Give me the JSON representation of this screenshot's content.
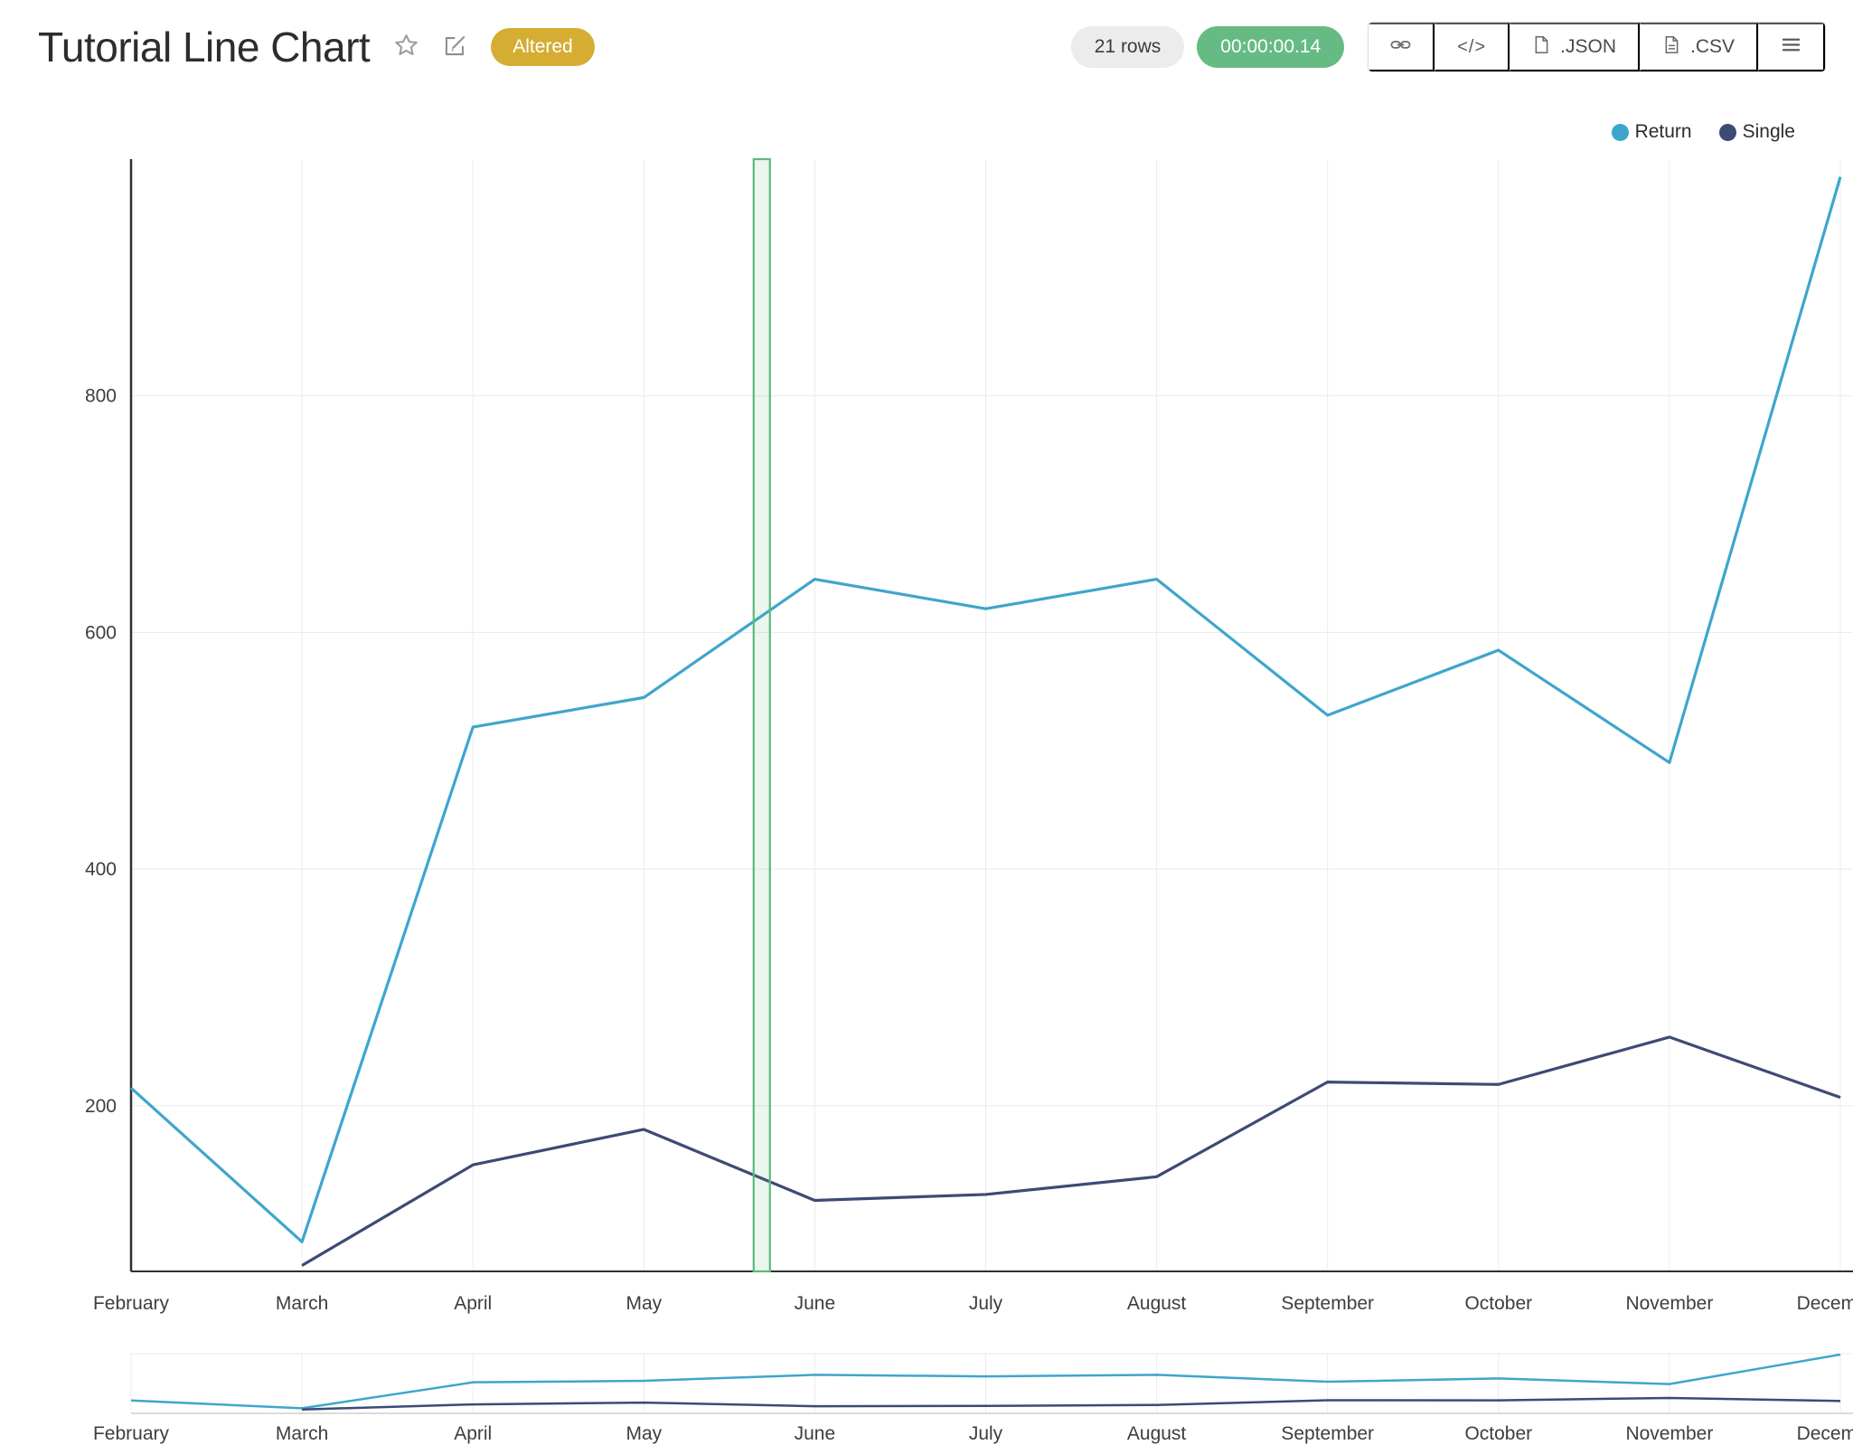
{
  "header": {
    "title": "Tutorial Line Chart",
    "altered_badge": "Altered",
    "rows_badge": "21 rows",
    "duration_badge": "00:00:00.14",
    "code_button_label": "</>",
    "json_button_label": ".JSON",
    "csv_button_label": ".CSV"
  },
  "colors": {
    "return_series": "#3ea6cb",
    "single_series": "#3e4a75",
    "selection_border": "#5bb97d",
    "selection_fill": "rgba(91,185,125,0.13)",
    "altered_badge_bg": "#d5ad33",
    "duration_badge_bg": "#66bb84",
    "rows_badge_bg": "#ececec"
  },
  "chart_data": {
    "type": "line",
    "title": "Tutorial Line Chart",
    "categories": [
      "February",
      "March",
      "April",
      "May",
      "June",
      "July",
      "August",
      "September",
      "October",
      "November",
      "December"
    ],
    "series": [
      {
        "name": "Return",
        "color": "#3ea6cb",
        "values": [
          215,
          85,
          520,
          545,
          645,
          620,
          645,
          530,
          585,
          490,
          985
        ]
      },
      {
        "name": "Single",
        "color": "#3e4a75",
        "values": [
          null,
          65,
          150,
          180,
          120,
          125,
          140,
          220,
          218,
          258,
          207
        ]
      }
    ],
    "xlabel": "",
    "ylabel": "",
    "y_ticks": [
      200,
      400,
      600,
      800
    ],
    "ylim": [
      60,
      1000
    ],
    "grid": true,
    "legend_position": "top-right",
    "selection_band": {
      "between": [
        "May",
        "June"
      ],
      "axis_fraction": 3.69
    },
    "navigator": {
      "ylim": [
        0,
        1000
      ],
      "shows_same_categories": true
    }
  }
}
